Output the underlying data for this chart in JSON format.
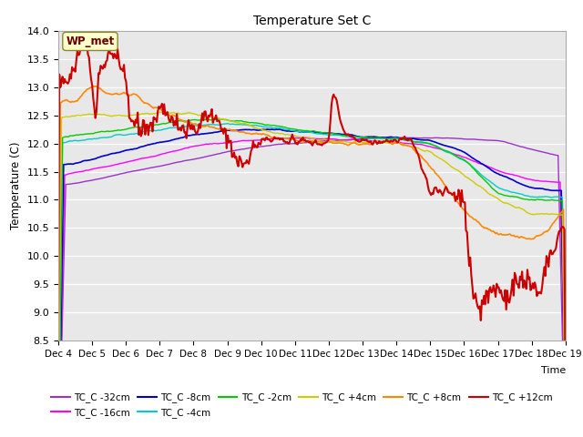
{
  "title": "Temperature Set C",
  "xlabel": "Time",
  "ylabel": "Temperature (C)",
  "ylim": [
    8.5,
    14.0
  ],
  "yticks": [
    8.5,
    9.0,
    9.5,
    10.0,
    10.5,
    11.0,
    11.5,
    12.0,
    12.5,
    13.0,
    13.5,
    14.0
  ],
  "fig_bg": "#ffffff",
  "plot_bg": "#e8e8e8",
  "grid_color": "#ffffff",
  "series": {
    "TC_C -32cm": {
      "color": "#9933cc",
      "lw": 1.0
    },
    "TC_C -16cm": {
      "color": "#ff00ff",
      "lw": 1.0
    },
    "TC_C -8cm": {
      "color": "#0000cc",
      "lw": 1.2
    },
    "TC_C -4cm": {
      "color": "#00cccc",
      "lw": 1.0
    },
    "TC_C -2cm": {
      "color": "#00cc00",
      "lw": 1.0
    },
    "TC_C +4cm": {
      "color": "#cccc00",
      "lw": 1.0
    },
    "TC_C +8cm": {
      "color": "#ff8800",
      "lw": 1.2
    },
    "TC_C +12cm": {
      "color": "#cc0000",
      "lw": 1.5
    }
  },
  "wp_met_label": "WP_met",
  "xtick_labels": [
    "Dec 4",
    "Dec 5",
    "Dec 6",
    "Dec 7",
    "Dec 8",
    "Dec 9",
    "Dec 10",
    "Dec 11",
    "Dec 12",
    "Dec 13",
    "Dec 14",
    "Dec 15",
    "Dec 16",
    "Dec 17",
    "Dec 18",
    "Dec 19"
  ],
  "n_points": 480,
  "days": 15
}
